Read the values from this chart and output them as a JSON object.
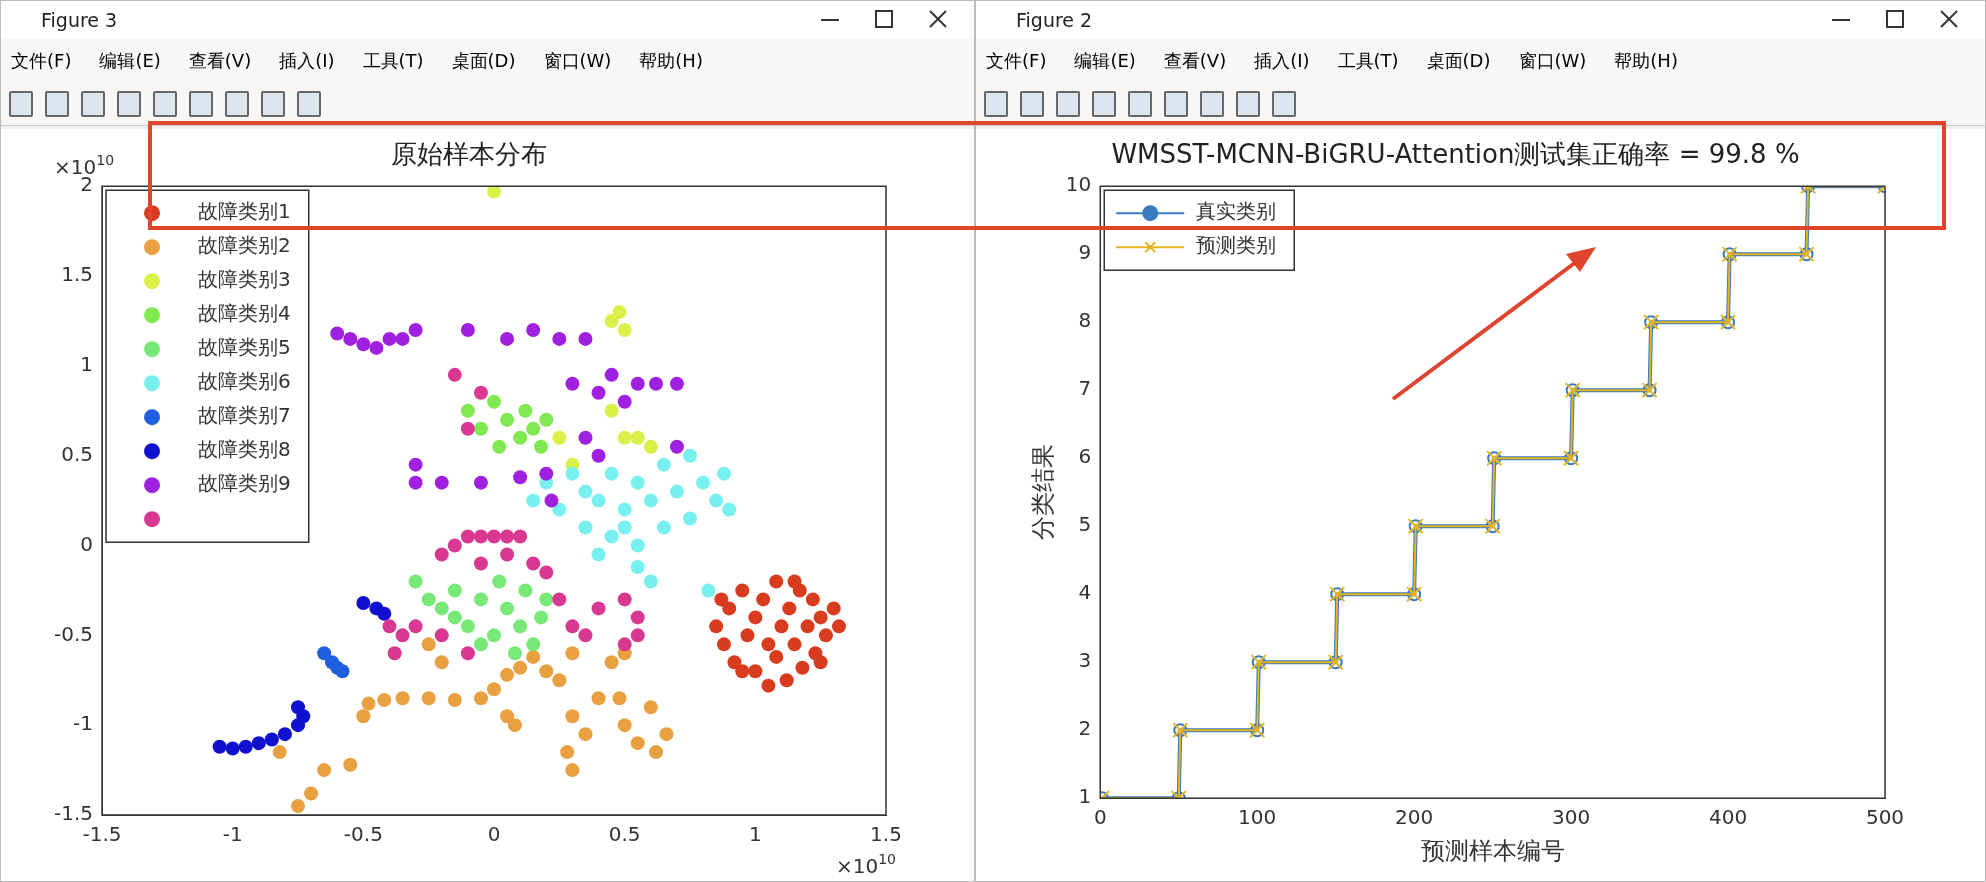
{
  "chart_data": [
    {
      "type": "scatter",
      "title": "原始样本分布",
      "xlim": [
        -1.5,
        1.5
      ],
      "ylim": [
        -1.5,
        2
      ],
      "xticks": [
        -1.5,
        -1,
        -0.5,
        0,
        0.5,
        1,
        1.5
      ],
      "yticks": [
        -1.5,
        -1,
        -0.5,
        0,
        0.5,
        1,
        1.5,
        2
      ],
      "grid": false,
      "legend": "top left",
      "marker": "circle",
      "annotations": [
        "Figure 3",
        "文件(F)",
        "编辑(E)",
        "查看(V)",
        "插入(I)",
        "工具(T)",
        "桌面(D)",
        "窗口(W)",
        "帮助(H)",
        "×10$^{10}$",
        "×10$^{10}$"
      ],
      "series": [
        {
          "name": "故障类别1",
          "color": "#d83b1e",
          "x": [
            0.85,
            0.88,
            0.9,
            0.92,
            0.95,
            0.97,
            1.0,
            1.0,
            1.03,
            1.05,
            1.08,
            1.08,
            1.1,
            1.12,
            1.13,
            1.15,
            1.17,
            1.18,
            1.2,
            1.22,
            1.23,
            1.25,
            1.27,
            1.3,
            1.32,
            0.95,
            1.05,
            1.15,
            1.25,
            0.87
          ],
          "values": [
            -0.45,
            -0.55,
            -0.35,
            -0.65,
            -0.25,
            -0.5,
            -0.4,
            -0.7,
            -0.3,
            -0.55,
            -0.2,
            -0.62,
            -0.45,
            -0.75,
            -0.35,
            -0.55,
            -0.25,
            -0.68,
            -0.45,
            -0.3,
            -0.6,
            -0.4,
            -0.5,
            -0.35,
            -0.45,
            -0.7,
            -0.78,
            -0.2,
            -0.65,
            -0.3
          ]
        },
        {
          "name": "故障类别2",
          "color": "#e8a040",
          "x": [
            -0.75,
            -0.7,
            -0.65,
            -0.55,
            -0.5,
            -0.48,
            -0.42,
            -0.35,
            -0.25,
            -0.15,
            -0.05,
            0.0,
            0.05,
            0.1,
            0.15,
            0.05,
            0.08,
            0.2,
            0.25,
            0.3,
            0.3,
            0.28,
            0.3,
            0.35,
            0.4,
            0.45,
            0.5,
            0.48,
            0.5,
            0.55,
            0.62,
            0.66,
            0.6,
            -0.25,
            -0.2,
            -0.82
          ],
          "values": [
            -1.45,
            -1.38,
            -1.25,
            -1.22,
            -0.95,
            -0.88,
            -0.86,
            -0.85,
            -0.85,
            -0.86,
            -0.85,
            -0.8,
            -0.72,
            -0.68,
            -0.62,
            -0.95,
            -1.0,
            -0.7,
            -0.75,
            -0.6,
            -0.95,
            -1.15,
            -1.25,
            -1.05,
            -0.85,
            -0.65,
            -0.6,
            -0.85,
            -1.0,
            -1.1,
            -1.15,
            -1.05,
            -0.9,
            -0.55,
            -0.65,
            -1.15
          ]
        },
        {
          "name": "故障类别3",
          "color": "#d8f048",
          "x": [
            0.25,
            0.3,
            0.45,
            0.5,
            0.55,
            0.6,
            0.45,
            0.48,
            0.5,
            0.0
          ],
          "values": [
            0.6,
            0.45,
            0.75,
            0.6,
            0.6,
            0.55,
            1.25,
            1.3,
            1.2,
            1.97
          ]
        },
        {
          "name": "故障类别4",
          "color": "#80e850",
          "x": [
            -0.1,
            -0.05,
            0,
            0.05,
            0.1,
            0.12,
            0.15,
            0.2,
            0.02,
            0.18
          ],
          "values": [
            0.75,
            0.65,
            0.8,
            0.7,
            0.6,
            0.75,
            0.65,
            0.7,
            0.55,
            0.55
          ]
        },
        {
          "name": "故障类别5",
          "color": "#78e878",
          "x": [
            -0.3,
            -0.25,
            -0.2,
            -0.15,
            -0.1,
            -0.05,
            0,
            0.02,
            0.05,
            0.1,
            0.12,
            0.15,
            0.18,
            0.2,
            -0.05,
            -0.15,
            0.08
          ],
          "values": [
            -0.2,
            -0.3,
            -0.35,
            -0.25,
            -0.45,
            -0.3,
            -0.5,
            -0.2,
            -0.35,
            -0.45,
            -0.25,
            -0.55,
            -0.4,
            -0.3,
            -0.55,
            -0.4,
            -0.6
          ]
        },
        {
          "name": "故障类别6",
          "color": "#78f0f0",
          "x": [
            0.15,
            0.2,
            0.25,
            0.3,
            0.35,
            0.35,
            0.4,
            0.45,
            0.45,
            0.5,
            0.55,
            0.55,
            0.6,
            0.65,
            0.65,
            0.7,
            0.75,
            0.75,
            0.8,
            0.85,
            0.9,
            0.88,
            0.55,
            0.6,
            0.82,
            0.5,
            0.4
          ],
          "values": [
            0.25,
            0.35,
            0.2,
            0.4,
            0.3,
            0.1,
            0.25,
            0.05,
            0.4,
            0.2,
            0.35,
            0.0,
            0.25,
            0.45,
            0.1,
            0.3,
            0.5,
            0.15,
            0.35,
            0.25,
            0.2,
            0.4,
            -0.12,
            -0.2,
            -0.25,
            0.1,
            -0.05
          ]
        },
        {
          "name": "故障类别7",
          "color": "#2060e0",
          "x": [
            -0.65,
            -0.62,
            -0.6,
            -0.58
          ],
          "values": [
            -0.6,
            -0.65,
            -0.68,
            -0.7
          ]
        },
        {
          "name": "故障类别8",
          "color": "#1010d0",
          "x": [
            -1.05,
            -1.0,
            -0.95,
            -0.9,
            -0.85,
            -0.8,
            -0.75,
            -0.73,
            -0.75,
            -0.5,
            -0.45,
            -0.42
          ],
          "values": [
            -1.12,
            -1.13,
            -1.12,
            -1.1,
            -1.08,
            -1.05,
            -1.0,
            -0.95,
            -0.9,
            -0.32,
            -0.35,
            -0.38
          ]
        },
        {
          "name": "故障类别9",
          "color": "#a020e0",
          "x": [
            -0.6,
            -0.55,
            -0.5,
            -0.45,
            -0.4,
            -0.35,
            -0.3,
            -0.1,
            0.05,
            0.15,
            0.25,
            0.35,
            -0.3,
            -0.3,
            -0.2,
            -0.05,
            0.1,
            0.2,
            0.3,
            0.4,
            0.45,
            0.5,
            0.55,
            0.62,
            0.7,
            0.35,
            0.4,
            0.7,
            0.22
          ],
          "values": [
            1.18,
            1.15,
            1.12,
            1.1,
            1.15,
            1.15,
            1.2,
            1.2,
            1.15,
            1.2,
            1.15,
            1.15,
            0.45,
            0.35,
            0.35,
            0.35,
            0.38,
            0.4,
            0.9,
            0.85,
            0.95,
            0.8,
            0.9,
            0.9,
            0.9,
            0.6,
            0.5,
            0.55,
            0.25
          ]
        },
        {
          "color": "#d83890",
          "x": [
            -0.2,
            -0.15,
            -0.1,
            -0.05,
            0,
            0.05,
            0.1,
            -0.05,
            0.05,
            0.15,
            0.2,
            0.25,
            0.3,
            0.35,
            0.4,
            0.5,
            0.55,
            0.55,
            0.5,
            -0.4,
            -0.35,
            -0.38,
            -0.3,
            -0.2,
            -0.1,
            -0.05,
            -0.15,
            -0.1
          ],
          "values": [
            -0.05,
            0.0,
            0.05,
            0.05,
            0.05,
            0.05,
            0.05,
            -0.1,
            -0.05,
            -0.1,
            -0.15,
            -0.3,
            -0.45,
            -0.5,
            -0.35,
            -0.3,
            -0.4,
            -0.5,
            -0.55,
            -0.45,
            -0.5,
            -0.6,
            -0.45,
            -0.5,
            -0.6,
            0.85,
            0.95,
            0.65
          ]
        }
      ]
    },
    {
      "type": "line",
      "title": "WMSST-MCNN-BiGRU-Attention测试集正确率 = 99.8 %",
      "xlabel": "预测样本编号",
      "ylabel": "分类结果",
      "xlim": [
        0,
        500
      ],
      "ylim": [
        1,
        10
      ],
      "xticks": [
        0,
        100,
        200,
        300,
        400,
        500
      ],
      "yticks": [
        1,
        2,
        3,
        4,
        5,
        6,
        7,
        8,
        9,
        10
      ],
      "grid": false,
      "legend": "top left",
      "annotations": [
        "Figure 2",
        "文件(F)",
        "编辑(E)",
        "查看(V)",
        "插入(I)",
        "工具(T)",
        "桌面(D)",
        "窗口(W)",
        "帮助(H)"
      ],
      "series": [
        {
          "name": "真实类别",
          "color": "#3a7bbf",
          "marker": "circle",
          "x": [
            1,
            50,
            51,
            100,
            101,
            150,
            151,
            200,
            201,
            250,
            251,
            300,
            301,
            350,
            351,
            400,
            401,
            450,
            451,
            500
          ],
          "values": [
            1,
            1,
            2,
            2,
            3,
            3,
            4,
            4,
            5,
            5,
            6,
            6,
            7,
            7,
            8,
            8,
            9,
            9,
            10,
            10
          ]
        },
        {
          "name": "预测类别",
          "color": "#e6b422",
          "marker": "cross",
          "x": [
            1,
            50,
            51,
            100,
            101,
            150,
            151,
            200,
            201,
            250,
            251,
            300,
            301,
            350,
            351,
            400,
            401,
            450,
            451,
            500
          ],
          "values": [
            1,
            1,
            2,
            2,
            3,
            3,
            4,
            4,
            5,
            5,
            6,
            6,
            7,
            7,
            8,
            8,
            9,
            9,
            10,
            10
          ]
        }
      ]
    }
  ]
}
